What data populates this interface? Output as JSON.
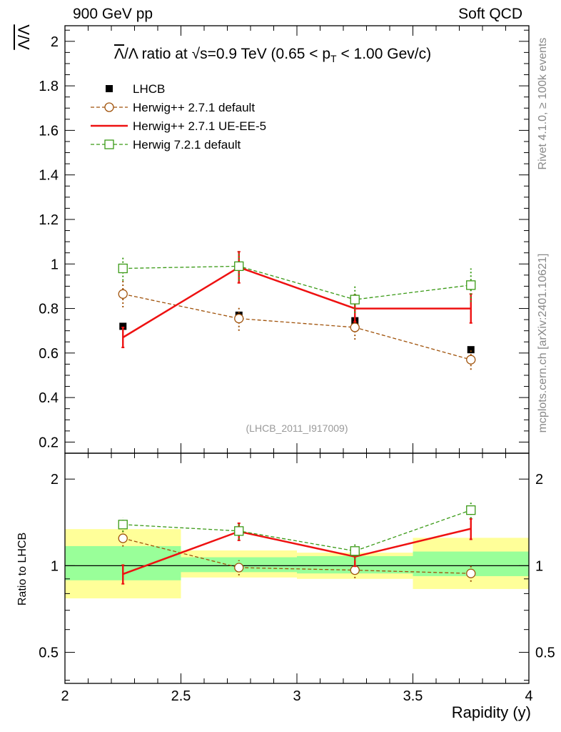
{
  "header": {
    "left": "900 GeV pp",
    "right": "Soft QCD"
  },
  "side": {
    "rivet": "Rivet 4.1.0, ≥ 100k events",
    "mcplots": "mcplots.cern.ch [arXiv:2401.10621]"
  },
  "chart_data": {
    "type": "scatter",
    "title": "Λ̅/Λ ratio at √s=0.9 TeV (0.65 < pT < 1.00 Gev/c)",
    "title_parts": {
      "lambdabar": "Λ",
      "ratio_text": "/Λ ratio at √s=0.9 TeV (0.65 < p",
      "subscript": "T",
      "tail": " < 1.00 Gev/c)"
    },
    "analysis_id": "(LHCB_2011_I917009)",
    "ylabel": "Λ/Λ",
    "xlabel": "Rapidity (y)",
    "ratio_ylabel": "Ratio to LHCB",
    "xlim": [
      2,
      4
    ],
    "ylim": [
      0.15,
      2.07
    ],
    "ratio_ylim": [
      0.39,
      2.46
    ],
    "x_ticks": [
      "2",
      "2.5",
      "3",
      "3.5",
      "4"
    ],
    "y_ticks": [
      "0.2",
      "0.4",
      "0.6",
      "0.8",
      "1",
      "1.2",
      "1.4",
      "1.6",
      "1.8",
      "2"
    ],
    "ratio_ticks": [
      "0.5",
      "1",
      "2"
    ],
    "bins": [
      [
        2.0,
        2.5
      ],
      [
        2.5,
        3.0
      ],
      [
        3.0,
        3.5
      ],
      [
        3.5,
        4.0
      ]
    ],
    "x": [
      2.25,
      2.75,
      3.25,
      3.75
    ],
    "series": [
      {
        "name": "LHCB",
        "style": "data",
        "color": "#000000",
        "values": [
          0.72,
          0.77,
          0.745,
          0.615
        ],
        "ratio": [
          1.0,
          1.0,
          1.0,
          1.0
        ],
        "band_inner": [
          [
            0.89,
            1.17
          ],
          [
            0.95,
            1.07
          ],
          [
            0.94,
            1.08
          ],
          [
            0.92,
            1.12
          ]
        ],
        "band_outer": [
          [
            0.77,
            1.34
          ],
          [
            0.91,
            1.13
          ],
          [
            0.9,
            1.11
          ],
          [
            0.83,
            1.25
          ]
        ]
      },
      {
        "name": "Herwig++ 2.7.1 default",
        "style": "circle-dashed",
        "color": "#a0520a",
        "values": [
          0.865,
          0.755,
          0.715,
          0.57
        ],
        "errors": [
          0.06,
          0.055,
          0.055,
          0.045
        ],
        "ratio": [
          1.245,
          0.985,
          0.965,
          0.94
        ],
        "ratio_errors": [
          0.08,
          0.06,
          0.06,
          0.06
        ]
      },
      {
        "name": "Herwig++ 2.7.1 UE-EE-5",
        "style": "line",
        "color": "#ee1111",
        "values": [
          0.67,
          0.985,
          0.8,
          0.8
        ],
        "errors": [
          0.045,
          0.07,
          0.06,
          0.065
        ],
        "ratio": [
          0.935,
          1.315,
          1.075,
          1.345
        ],
        "ratio_errors": [
          0.07,
          0.09,
          0.08,
          0.11
        ]
      },
      {
        "name": "Herwig 7.2.1 default",
        "style": "square-dashed",
        "color": "#3a9a16",
        "values": [
          0.98,
          0.99,
          0.84,
          0.905
        ],
        "errors": [
          0.055,
          0.065,
          0.06,
          0.075
        ],
        "ratio": [
          1.39,
          1.32,
          1.125,
          1.56
        ],
        "ratio_errors": [
          0.08,
          0.09,
          0.08,
          0.1
        ]
      }
    ],
    "colors": {
      "band_outer": "#ffff99",
      "band_inner": "#99ff99"
    }
  }
}
